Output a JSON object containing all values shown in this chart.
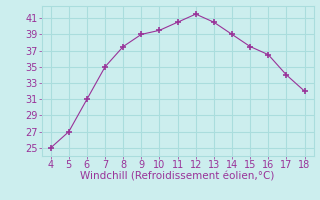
{
  "x": [
    4,
    5,
    6,
    7,
    8,
    9,
    10,
    11,
    12,
    13,
    14,
    15,
    16,
    17,
    18
  ],
  "y": [
    25,
    27,
    31,
    35,
    37.5,
    39,
    39.5,
    40.5,
    41.5,
    40.5,
    39,
    37.5,
    36.5,
    34,
    32
  ],
  "line_color": "#993399",
  "marker": "+",
  "marker_size": 4,
  "marker_lw": 1.2,
  "background_color": "#cceeee",
  "grid_color": "#aadddd",
  "xlabel": "Windchill (Refroidissement éolien,°C)",
  "xlabel_color": "#993399",
  "xlabel_fontsize": 7.5,
  "tick_color": "#993399",
  "tick_fontsize": 7,
  "xlim": [
    3.5,
    18.5
  ],
  "ylim": [
    24,
    42.5
  ],
  "yticks": [
    25,
    27,
    29,
    31,
    33,
    35,
    37,
    39,
    41
  ],
  "xticks": [
    4,
    5,
    6,
    7,
    8,
    9,
    10,
    11,
    12,
    13,
    14,
    15,
    16,
    17,
    18
  ]
}
